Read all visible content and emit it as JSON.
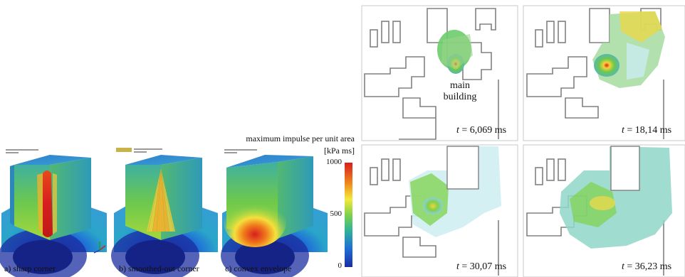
{
  "left_figure": {
    "panels": [
      {
        "caption": "a) sharp corner"
      },
      {
        "caption": "b) smoothed-out corner"
      },
      {
        "caption": "c) convex envelope"
      }
    ],
    "colorbar": {
      "title": "maximum impulse per unit area",
      "unit": "[kPa ms]",
      "ticks": [
        "1000",
        "500",
        "0"
      ],
      "colors": [
        "#d71e1e",
        "#f08a1c",
        "#f5e93c",
        "#7ed24a",
        "#2fb39a",
        "#1f6fd6",
        "#1b2ea0"
      ]
    }
  },
  "right_figure": {
    "label_main_building": "main\nbuilding",
    "panels": [
      {
        "time_var": "t",
        "time_value": " = 6,069 ms"
      },
      {
        "time_var": "t",
        "time_value": " = 18,14 ms"
      },
      {
        "time_var": "t",
        "time_value": " = 30,07 ms"
      },
      {
        "time_var": "t",
        "time_value": " = 36,23 ms"
      }
    ]
  }
}
